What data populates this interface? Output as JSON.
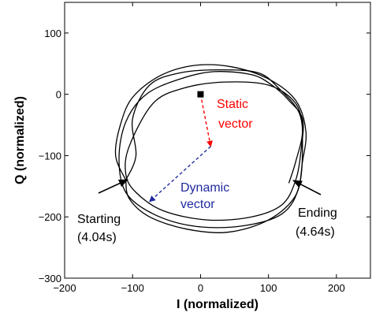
{
  "chart_data": {
    "type": "line",
    "title": "",
    "xlabel": "I (normalized)",
    "ylabel": "Q (normalized)",
    "xlim": [
      -200,
      250
    ],
    "ylim": [
      -300,
      150
    ],
    "xticks": [
      -200,
      -100,
      0,
      100,
      200
    ],
    "yticks": [
      -300,
      -200,
      -100,
      0,
      100
    ],
    "xtick_labels": [
      "−200",
      "−100",
      "0",
      "100",
      "200"
    ],
    "ytick_labels": [
      "−300",
      "−200",
      "−100",
      "0",
      "100"
    ],
    "grid": false,
    "colors": {
      "static": "#ff0000",
      "dynamic": "#1f2a9e",
      "trace": "#000000"
    },
    "trajectory": [
      [
        [
          -110,
          -140
        ],
        [
          -125,
          -100
        ],
        [
          -118,
          -50
        ],
        [
          -100,
          -5
        ],
        [
          -60,
          30
        ],
        [
          -10,
          47
        ],
        [
          45,
          45
        ],
        [
          100,
          25
        ],
        [
          140,
          -10
        ],
        [
          155,
          -60
        ],
        [
          150,
          -110
        ],
        [
          140,
          -165
        ],
        [
          100,
          -205
        ],
        [
          40,
          -225
        ],
        [
          -20,
          -220
        ],
        [
          -75,
          -200
        ],
        [
          -105,
          -170
        ],
        [
          -110,
          -140
        ]
      ],
      [
        [
          -110,
          -140
        ],
        [
          -95,
          -100
        ],
        [
          -100,
          -40
        ],
        [
          -75,
          15
        ],
        [
          -30,
          35
        ],
        [
          30,
          40
        ],
        [
          85,
          35
        ],
        [
          115,
          10
        ],
        [
          145,
          -30
        ],
        [
          150,
          -80
        ],
        [
          145,
          -150
        ],
        [
          120,
          -195
        ],
        [
          60,
          -215
        ],
        [
          -10,
          -215
        ],
        [
          -70,
          -195
        ],
        [
          -110,
          -160
        ],
        [
          -120,
          -105
        ],
        [
          -110,
          -45
        ],
        [
          -80,
          0
        ],
        [
          -30,
          25
        ],
        [
          20,
          37
        ],
        [
          75,
          32
        ],
        [
          105,
          15
        ],
        [
          130,
          -10
        ],
        [
          150,
          -40
        ],
        [
          148,
          -90
        ],
        [
          140,
          -140
        ],
        [
          120,
          -180
        ],
        [
          75,
          -200
        ],
        [
          10,
          -205
        ],
        [
          -55,
          -190
        ],
        [
          -95,
          -160
        ],
        [
          -110,
          -130
        ],
        [
          -105,
          -85
        ],
        [
          -70,
          -15
        ],
        [
          -25,
          10
        ],
        [
          35,
          20
        ],
        [
          100,
          15
        ],
        [
          140,
          -15
        ],
        [
          150,
          -60
        ],
        [
          140,
          -110
        ],
        [
          130,
          -145
        ]
      ]
    ],
    "static_vector": {
      "from": [
        0,
        0
      ],
      "to": [
        15,
        -85
      ],
      "label": [
        "Static",
        "vector"
      ]
    },
    "dynamic_vector": {
      "from": [
        15,
        -85
      ],
      "to": [
        -75,
        -175
      ],
      "label": [
        "Dynamic",
        "vector"
      ]
    },
    "origin_marker": [
      0,
      0
    ],
    "annotations": [
      {
        "label": [
          "Starting",
          "(4.04s)"
        ],
        "point": [
          -110,
          -140
        ]
      },
      {
        "label": [
          "Ending",
          "(4.64s)"
        ],
        "point": [
          130,
          -145
        ]
      }
    ]
  }
}
